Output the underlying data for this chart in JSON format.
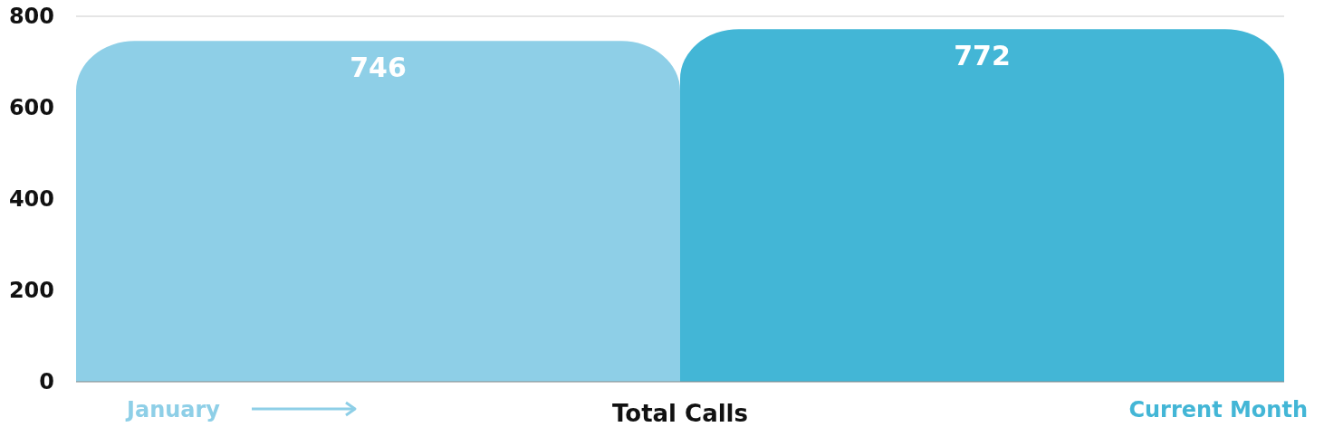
{
  "chart_data": {
    "type": "bar",
    "xlabel": "Total Calls",
    "categories": [
      null
    ],
    "series": [
      {
        "name": "January",
        "color": "#8ecfe7",
        "values": [
          746
        ]
      },
      {
        "name": "Current Month",
        "color": "#43b6d6",
        "values": [
          772
        ]
      }
    ],
    "ylim": [
      0,
      800
    ],
    "yticks": [
      0,
      200,
      400,
      600,
      800
    ],
    "grid": false,
    "legend": "bottom",
    "data_labels": true
  }
}
